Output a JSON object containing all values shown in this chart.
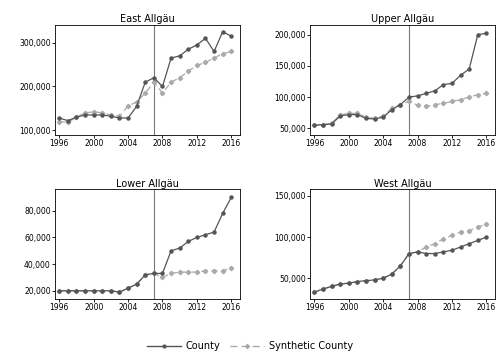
{
  "years": [
    1996,
    1997,
    1998,
    1999,
    2000,
    2001,
    2002,
    2003,
    2004,
    2005,
    2006,
    2007,
    2008,
    2009,
    2010,
    2011,
    2012,
    2013,
    2014,
    2015,
    2016
  ],
  "east_allgau_county": [
    128000,
    122000,
    130000,
    135000,
    135000,
    135000,
    132000,
    128000,
    128000,
    155000,
    210000,
    220000,
    200000,
    265000,
    270000,
    285000,
    295000,
    310000,
    280000,
    325000,
    315000
  ],
  "east_allgau_synthetic": [
    120000,
    118000,
    130000,
    140000,
    142000,
    140000,
    135000,
    133000,
    155000,
    165000,
    185000,
    210000,
    185000,
    210000,
    220000,
    235000,
    248000,
    255000,
    265000,
    275000,
    280000
  ],
  "upper_allgau_county": [
    55000,
    56000,
    57000,
    70000,
    72000,
    72000,
    66000,
    65000,
    68000,
    80000,
    88000,
    100000,
    102000,
    106000,
    110000,
    120000,
    122000,
    135000,
    145000,
    200000,
    202000
  ],
  "upper_allgau_synthetic": [
    55000,
    56000,
    58000,
    72000,
    74000,
    74000,
    68000,
    66000,
    70000,
    82000,
    88000,
    93000,
    87000,
    85000,
    88000,
    90000,
    93000,
    96000,
    100000,
    104000,
    106000
  ],
  "lower_allgau_county": [
    20000,
    20000,
    20000,
    20000,
    20000,
    20000,
    20000,
    19000,
    22000,
    25000,
    32000,
    33000,
    33000,
    50000,
    52000,
    57000,
    60000,
    62000,
    64000,
    78000,
    90000
  ],
  "lower_allgau_synthetic": [
    20000,
    20000,
    20000,
    20000,
    20000,
    20000,
    20000,
    19000,
    22000,
    25000,
    32000,
    33000,
    30000,
    33000,
    34000,
    34000,
    34000,
    35000,
    35000,
    35000,
    37000
  ],
  "west_allgau_county": [
    33000,
    37000,
    40000,
    43000,
    44000,
    46000,
    47000,
    48000,
    50000,
    55000,
    65000,
    80000,
    82000,
    80000,
    80000,
    82000,
    84000,
    88000,
    92000,
    96000,
    100000
  ],
  "west_allgau_synthetic": [
    33000,
    37000,
    40000,
    43000,
    44000,
    46000,
    47000,
    48000,
    50000,
    55000,
    65000,
    80000,
    82000,
    88000,
    92000,
    98000,
    102000,
    106000,
    108000,
    112000,
    116000
  ],
  "titles": [
    "East Allgäu",
    "Upper Allgäu",
    "Lower Allgäu",
    "West Allgäu"
  ],
  "county_color": "#555555",
  "synthetic_color": "#aaaaaa",
  "vline_year": 2007,
  "xticks": [
    1996,
    2000,
    2004,
    2008,
    2012,
    2016
  ],
  "east_yticks": [
    100000,
    200000,
    300000
  ],
  "upper_yticks": [
    50000,
    100000,
    150000,
    200000
  ],
  "lower_yticks": [
    20000,
    40000,
    60000,
    80000
  ],
  "west_yticks": [
    50000,
    100000,
    150000
  ],
  "east_ylim": [
    90000,
    340000
  ],
  "upper_ylim": [
    40000,
    215000
  ],
  "lower_ylim": [
    14000,
    96000
  ],
  "west_ylim": [
    25000,
    158000
  ],
  "east_xlim": [
    1995.5,
    2016.8
  ],
  "legend_county": "County",
  "legend_synthetic": "Synthetic County"
}
